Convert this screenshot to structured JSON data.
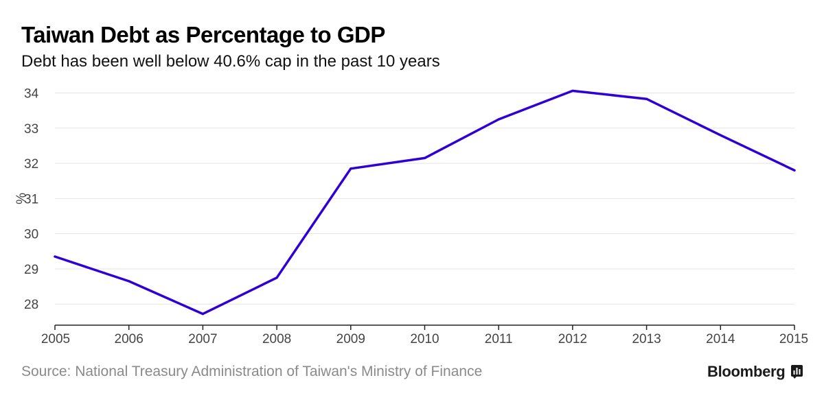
{
  "title": "Taiwan Debt as Percentage to GDP",
  "subtitle": "Debt has been well below 40.6% cap in the past 10 years",
  "source": "Source: National Treasury Administration of Taiwan's Ministry of Finance",
  "brand": "Bloomberg",
  "brand_icon": "bloomberg-terminal-icon",
  "chart_data": {
    "type": "line",
    "title": "Taiwan Debt as Percentage to GDP",
    "subtitle": "Debt has been well below 40.6% cap in the past 10 years",
    "xlabel": "",
    "ylabel": "%",
    "x": [
      "2005",
      "2006",
      "2007",
      "2008",
      "2009",
      "2010",
      "2011",
      "2012",
      "2013",
      "2014",
      "2015"
    ],
    "series": [
      {
        "values": [
          29.35,
          28.65,
          27.72,
          28.75,
          31.85,
          32.15,
          33.25,
          34.06,
          33.83,
          32.8,
          31.8
        ],
        "color": "#2f00d6"
      }
    ],
    "yticks": [
      28,
      29,
      30,
      31,
      32,
      33,
      34
    ],
    "ylim": [
      27.4,
      34.4
    ],
    "grid": true,
    "legend": "none"
  }
}
